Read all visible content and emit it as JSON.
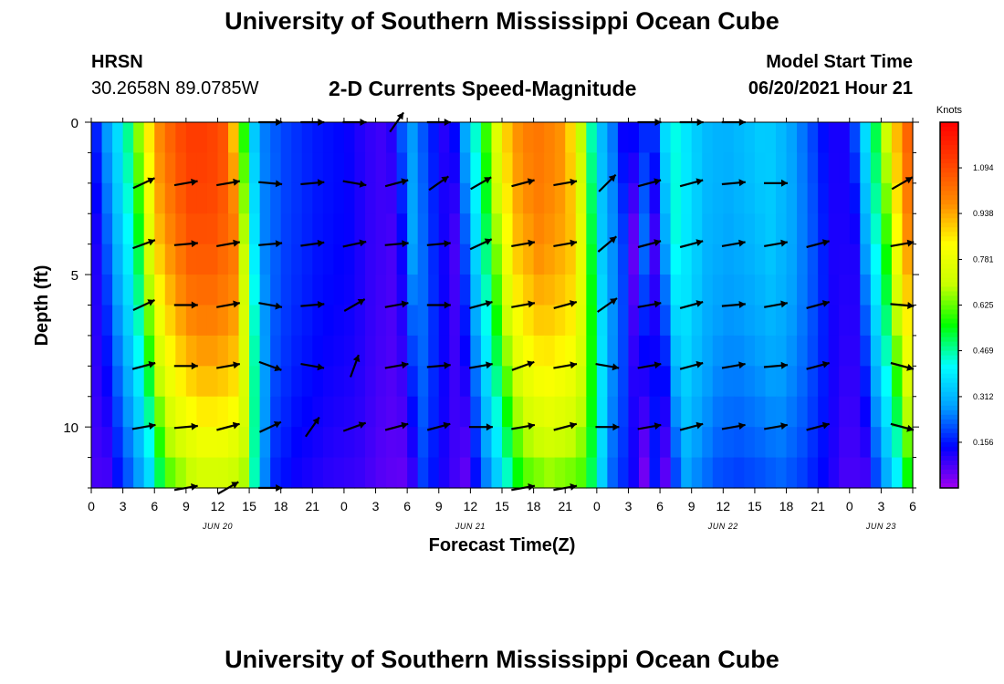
{
  "header": {
    "title": "University of Southern Mississippi Ocean Cube",
    "station": "HRSN",
    "coordinates": "30.2658N  89.0785W",
    "subtitle": "2-D Currents Speed-Magnitude",
    "model_start_label": "Model Start Time",
    "model_start_value": "06/20/2021 Hour 21"
  },
  "footer": {
    "title": "University of Southern Mississippi Ocean Cube"
  },
  "colors": {
    "scale": [
      "#a000f0",
      "#0000ff",
      "#00a0ff",
      "#00ffff",
      "#00ff00",
      "#c8ff00",
      "#ffff00",
      "#ff8c00",
      "#ff4000",
      "#ff0000"
    ],
    "arrow": "#000000",
    "frame": "#000000"
  },
  "chart_data": {
    "type": "heatmap",
    "title": "2-D Currents Speed-Magnitude",
    "xlabel": "Forecast Time(Z)",
    "ylabel": "Depth (ft)",
    "x_ticks": [
      "0",
      "3",
      "6",
      "9",
      "12",
      "15",
      "18",
      "21",
      "0",
      "3",
      "6",
      "9",
      "12",
      "15",
      "18",
      "21",
      "0",
      "3",
      "6",
      "9",
      "12",
      "15",
      "18",
      "21",
      "0",
      "3",
      "6"
    ],
    "x_range_hours": [
      0,
      78
    ],
    "date_labels": [
      {
        "label": "JUN 20",
        "hour": 12
      },
      {
        "label": "JUN 21",
        "hour": 36
      },
      {
        "label": "JUN 22",
        "hour": 60
      },
      {
        "label": "JUN 23",
        "hour": 75
      }
    ],
    "y_ticks": [
      "0",
      "5",
      "10"
    ],
    "y_tick_values": [
      0,
      5,
      10
    ],
    "ylim": [
      0,
      12
    ],
    "colorbar": {
      "title": "Knots",
      "labels": [
        "1.094",
        "0.938",
        "0.781",
        "0.625",
        "0.469",
        "0.312",
        "0.156"
      ],
      "values": [
        1.094,
        0.938,
        0.781,
        0.625,
        0.469,
        0.312,
        0.156
      ],
      "range": [
        0,
        1.25
      ]
    },
    "speed_profile": {
      "hours": [
        0,
        1.5,
        3,
        4,
        5,
        6,
        7.5,
        9,
        11,
        13,
        14,
        15,
        16,
        18,
        21,
        24,
        26,
        28,
        29,
        30,
        32,
        34,
        35,
        36,
        37,
        38,
        39,
        40,
        42,
        44,
        45,
        46,
        47,
        48,
        50,
        51,
        52,
        53,
        54,
        55,
        56,
        58,
        60,
        62,
        64,
        66,
        68,
        70,
        72,
        73,
        74,
        75,
        76,
        77,
        78
      ],
      "surface": [
        0.12,
        0.28,
        0.42,
        0.55,
        0.78,
        0.95,
        1.05,
        1.12,
        1.12,
        1.06,
        0.72,
        0.4,
        0.26,
        0.2,
        0.16,
        0.14,
        0.1,
        0.08,
        0.14,
        0.3,
        0.18,
        0.08,
        0.22,
        0.38,
        0.52,
        0.68,
        0.85,
        0.95,
        1.02,
        0.98,
        0.95,
        0.8,
        0.55,
        0.35,
        0.2,
        0.05,
        0.25,
        0.08,
        0.3,
        0.45,
        0.4,
        0.32,
        0.3,
        0.32,
        0.35,
        0.3,
        0.22,
        0.12,
        0.12,
        0.3,
        0.45,
        0.6,
        0.85,
        1.0,
        1.1
      ],
      "bottom_speed_factor": 0.62,
      "bottom_time_shift_hours": 1.5
    },
    "vectors": {
      "rows_depth_ft": [
        0,
        2,
        4,
        6,
        8,
        10,
        12
      ],
      "cols_hour": [
        5,
        9,
        13,
        17,
        21,
        25,
        29,
        33,
        37,
        41,
        45,
        49,
        53,
        57,
        61,
        65,
        69,
        73,
        77
      ],
      "directions_deg": [
        [
          null,
          null,
          null,
          0,
          0,
          0,
          55,
          0,
          null,
          null,
          null,
          null,
          0,
          0,
          0,
          null,
          null,
          null,
          null
        ],
        [
          25,
          10,
          10,
          -5,
          5,
          -10,
          15,
          35,
          30,
          15,
          10,
          45,
          15,
          15,
          5,
          0,
          null,
          null,
          30
        ],
        [
          20,
          5,
          10,
          5,
          8,
          12,
          5,
          5,
          25,
          10,
          10,
          40,
          15,
          15,
          10,
          10,
          15,
          null,
          10
        ],
        [
          25,
          0,
          10,
          -10,
          5,
          30,
          10,
          0,
          15,
          10,
          15,
          35,
          10,
          15,
          5,
          10,
          15,
          null,
          -5
        ],
        [
          15,
          0,
          10,
          -20,
          -10,
          70,
          10,
          5,
          10,
          20,
          10,
          -10,
          10,
          15,
          10,
          5,
          15,
          null,
          -15
        ],
        [
          10,
          5,
          15,
          25,
          55,
          20,
          15,
          15,
          0,
          10,
          15,
          0,
          10,
          15,
          10,
          10,
          15,
          null,
          -15
        ],
        [
          null,
          10,
          30,
          0,
          null,
          null,
          null,
          null,
          null,
          10,
          10,
          null,
          null,
          null,
          null,
          null,
          null,
          null,
          null
        ]
      ]
    }
  }
}
